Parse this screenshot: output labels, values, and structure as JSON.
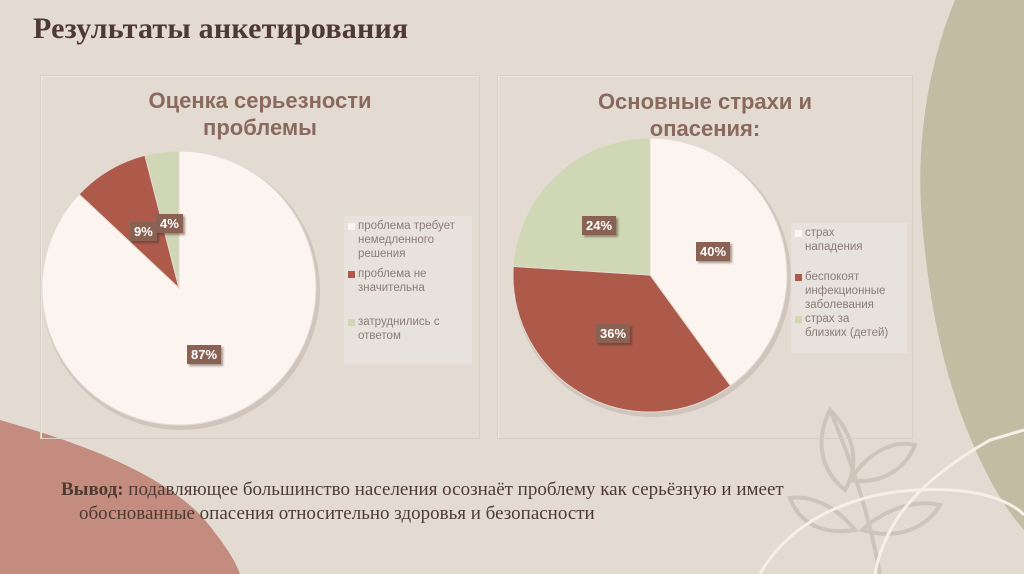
{
  "slide": {
    "title": "Результаты анкетирования",
    "colors": {
      "background": "#e3dbd2",
      "title_text": "#4e3a33",
      "chart_title": "#8a6a5d",
      "label_bg": "#8a6253",
      "cream": "#fcf4ee",
      "rust": "#ad5a4b",
      "sage": "#cfd7b5",
      "deco_olive": "#c2bca2",
      "deco_pink": "#c48c7f"
    }
  },
  "conclusion": {
    "lead": "Вывод:",
    "line1": "подавляющее большинство населения осознаёт проблему как серьёзную и имеет",
    "line2": "обоснованные опасения относительно здоровья и безопасности"
  },
  "chart_data": [
    {
      "type": "pie",
      "title": "Оценка серьезности проблемы",
      "title_lines": [
        "Оценка серьезности",
        "проблемы"
      ],
      "categories": [
        "проблема требует немедленного решения",
        "проблема не значительна",
        "затруднились с ответом"
      ],
      "values": [
        87,
        9,
        4
      ],
      "labels": [
        "87%",
        "9%",
        "4%"
      ],
      "colors": [
        "#fcf4ee",
        "#ad5a4b",
        "#cfd7b5"
      ],
      "legend_position": "right",
      "legend": [
        {
          "lines": [
            "проблема требует",
            "немедленного",
            "решения"
          ],
          "color": "#fcf4ee"
        },
        {
          "lines": [
            "проблема не",
            "значительна"
          ],
          "color": "#ad5a4b"
        },
        {
          "lines": [
            "затруднились с",
            "ответом"
          ],
          "color": "#cfd7b5"
        }
      ]
    },
    {
      "type": "pie",
      "title": "Основные страхи и опасения:",
      "title_lines": [
        "Основные страхи и",
        "опасения:"
      ],
      "categories": [
        "страх нападения",
        "беспокоят инфекционные заболевания",
        "страх за близких (детей)"
      ],
      "values": [
        40,
        36,
        24
      ],
      "labels": [
        "40%",
        "36%",
        "24%"
      ],
      "colors": [
        "#fcf4ee",
        "#ad5a4b",
        "#cfd7b5"
      ],
      "legend_position": "right",
      "legend": [
        {
          "lines": [
            "страх",
            "нападения"
          ],
          "color": "#fcf4ee"
        },
        {
          "lines": [
            "беспокоят",
            "инфекционные",
            "заболевания"
          ],
          "color": "#ad5a4b"
        },
        {
          "lines": [
            "страх за",
            "близких (детей)"
          ],
          "color": "#cfd7b5"
        }
      ]
    }
  ]
}
